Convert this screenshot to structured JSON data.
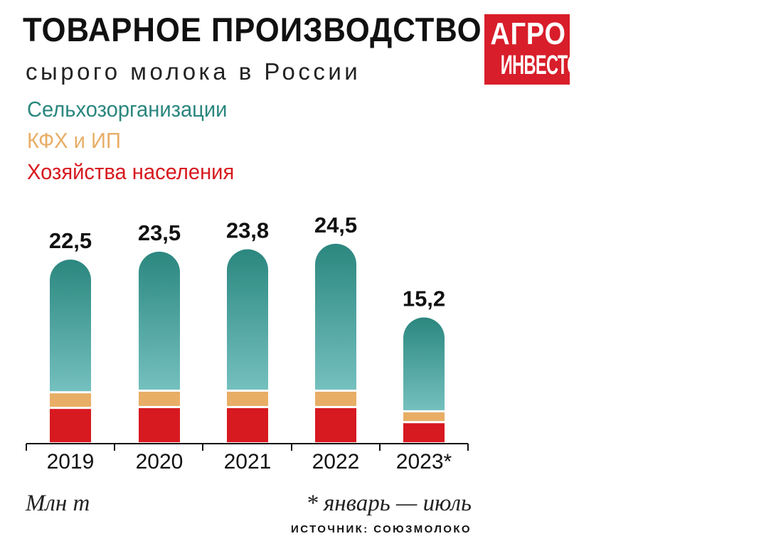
{
  "header": {
    "title": "ТОВАРНОЕ ПРОИЗВОДСТВО",
    "subtitle": "сырого молока в России"
  },
  "logo": {
    "line1": "АГРО",
    "line2": "ИНВЕСТОР",
    "color": "#d81e2a"
  },
  "colors": {
    "farm_org_top": "#2b877f",
    "farm_org_bottom": "#74c0bf",
    "kfh": "#e8ae66",
    "households": "#d71920"
  },
  "chart_data": {
    "type": "bar",
    "stacked": true,
    "categories": [
      "2019",
      "2020",
      "2021",
      "2022",
      "2023*"
    ],
    "totals": [
      "22,5",
      "23,5",
      "23,8",
      "24,5",
      "15,2"
    ],
    "total_values": [
      22.5,
      23.5,
      23.8,
      24.5,
      15.2
    ],
    "series": [
      {
        "name": "Хозяйства населения",
        "values": [
          4.2,
          4.3,
          4.3,
          4.3,
          2.4
        ]
      },
      {
        "name": "КФХ и ИП",
        "values": [
          1.7,
          1.8,
          1.8,
          1.8,
          1.1
        ]
      },
      {
        "name": "Сельхозорганизации",
        "values": [
          16.6,
          17.4,
          17.7,
          18.4,
          11.7
        ]
      }
    ],
    "legend_position": "top-left",
    "ylim": [
      0,
      26
    ],
    "grid": false,
    "unit": "Млн т",
    "footnote": "* январь — июль",
    "source": "ИСТОЧНИК: СОЮЗМОЛОКО"
  }
}
